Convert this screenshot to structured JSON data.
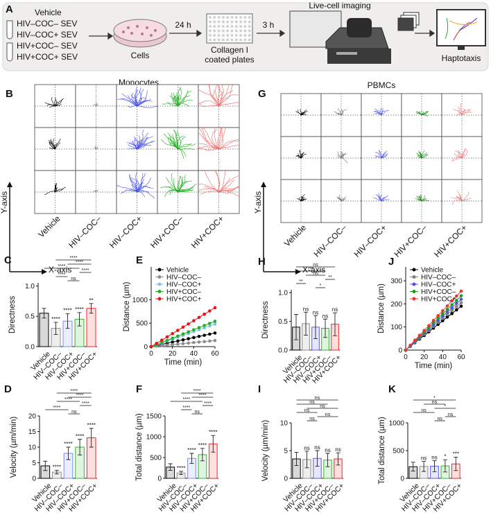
{
  "figure_a": {
    "label": "A",
    "groups": [
      "Vehicle",
      "HIV–COC– SEV",
      "HIV–COC+ SEV",
      "HIV+COC– SEV",
      "HIV+COC+ SEV"
    ],
    "cells": "Cells",
    "step1": "24 h",
    "plate": [
      "Collagen I",
      "coated plates"
    ],
    "step2": "3 h",
    "imaging": "Live-cell imaging",
    "result": "Haptotaxis"
  },
  "trajectories": [
    {
      "panel": "B",
      "title": "Monocytes",
      "conditions": [
        "Vehicle",
        "HIV–COC–",
        "HIV–COC+",
        "HIV+COC–",
        "HIV+COC+"
      ],
      "y_axis": "Y-axis",
      "x_axis": "X-axis",
      "colors": [
        "#000000",
        "#999999",
        "#4b55e6",
        "#1fb01f",
        "#f26b6b"
      ]
    },
    {
      "panel": "G",
      "title": "PBMCs",
      "conditions": [
        "Vehicle",
        "HIV–COC–",
        "HIV–COC+",
        "HIV+COC–",
        "HIV+COC+"
      ],
      "y_axis": "Y-axis",
      "x_axis": "X-axis",
      "colors": [
        "#000000",
        "#777777",
        "#4b55e6",
        "#1a8f1a",
        "#f07a7a"
      ]
    }
  ],
  "chart_data": [
    {
      "panel": "C",
      "type": "bar",
      "ylabel": "Directness",
      "categories": [
        "Vehicle",
        "HIV–COC–",
        "HIV–COC+",
        "HIV+COC–",
        "HIV+COC+"
      ],
      "values": [
        0.55,
        0.3,
        0.42,
        0.45,
        0.63
      ],
      "errors": [
        0.08,
        0.1,
        0.12,
        0.11,
        0.08
      ],
      "colors": [
        "#000000",
        "#8c8c8c",
        "#7b8cf0",
        "#2db82d",
        "#ff2020"
      ],
      "ylim": [
        0,
        1.05
      ],
      "yticks": [
        {
          "value": 0,
          "label": "0.0"
        },
        {
          "value": 0.5,
          "label": "0.5"
        },
        {
          "value": 1,
          "label": "1.0"
        }
      ],
      "marks": [
        null,
        "****",
        "****",
        "****",
        "**"
      ],
      "comparisons": [
        {
          "groups": [
            1,
            4
          ],
          "label": "****"
        },
        {
          "groups": [
            2,
            4
          ],
          "label": "****"
        },
        {
          "groups": [
            0,
            3
          ],
          "label": "****"
        },
        {
          "groups": [
            3,
            4
          ],
          "label": "****"
        },
        {
          "groups": [
            1,
            2
          ],
          "label": "****"
        },
        {
          "groups": [
            2,
            3
          ],
          "label": "ns"
        }
      ]
    },
    {
      "panel": "D",
      "type": "bar",
      "ylabel": "Velocity (µm/min)",
      "categories": [
        "Vehicle",
        "HIV–COC–",
        "HIV–COC+",
        "HIV+COC–",
        "HIV+COC+"
      ],
      "values": [
        4,
        2,
        8,
        10,
        13
      ],
      "errors": [
        1.5,
        0.6,
        2,
        2.5,
        3
      ],
      "colors": [
        "#000000",
        "#8c8c8c",
        "#7b8cf0",
        "#2db82d",
        "#ff2020"
      ],
      "ylim": [
        0,
        20
      ],
      "yticks": [
        0,
        5,
        10,
        15,
        20
      ],
      "marks": [
        null,
        "****",
        "****",
        "****",
        "****"
      ],
      "comparisons": [
        {
          "groups": [
            1,
            4
          ],
          "label": "****"
        },
        {
          "groups": [
            2,
            4
          ],
          "label": "****"
        },
        {
          "groups": [
            1,
            3
          ],
          "label": "****"
        },
        {
          "groups": [
            3,
            4
          ],
          "label": "****"
        },
        {
          "groups": [
            0,
            2
          ],
          "label": "****"
        },
        {
          "groups": [
            2,
            3
          ],
          "label": "ns"
        }
      ]
    },
    {
      "panel": "E",
      "type": "line",
      "ylabel": "Distance (µm)",
      "xlabel": "Time (min)",
      "x": [
        0,
        5,
        10,
        15,
        20,
        25,
        30,
        35,
        40,
        45,
        50,
        55,
        60
      ],
      "xlim": [
        0,
        60
      ],
      "xticks": [
        0,
        20,
        40,
        60
      ],
      "ylim": [
        0,
        1700
      ],
      "yticks": [
        0,
        500,
        1000
      ],
      "series": [
        {
          "name": "Vehicle",
          "color": "#000000",
          "values": [
            0,
            24,
            48,
            73,
            97,
            121,
            145,
            169,
            193,
            218,
            242,
            266,
            290
          ]
        },
        {
          "name": "HIV–COC–",
          "color": "#8c8c8c",
          "values": [
            0,
            11,
            22,
            33,
            43,
            54,
            65,
            76,
            87,
            98,
            108,
            119,
            130
          ]
        },
        {
          "name": "HIV–COC+",
          "color": "#87bff5",
          "values": [
            0,
            40,
            80,
            120,
            160,
            200,
            240,
            280,
            320,
            360,
            400,
            440,
            480
          ]
        },
        {
          "name": "HIV+COC–",
          "color": "#22b022",
          "values": [
            0,
            45,
            90,
            135,
            180,
            225,
            270,
            315,
            360,
            405,
            450,
            495,
            540
          ]
        },
        {
          "name": "HIV+COC+",
          "color": "#ee1111",
          "values": [
            0,
            69,
            138,
            208,
            277,
            346,
            415,
            484,
            553,
            623,
            692,
            761,
            830
          ]
        }
      ]
    },
    {
      "panel": "F",
      "type": "bar",
      "ylabel": "Total distance (µm)",
      "categories": [
        "Vehicle",
        "HIV–COC–",
        "HIV–COC+",
        "HIV+COC–",
        "HIV+COC+"
      ],
      "values": [
        270,
        130,
        480,
        570,
        830
      ],
      "errors": [
        80,
        40,
        120,
        150,
        200
      ],
      "colors": [
        "#000000",
        "#8c8c8c",
        "#7b8cf0",
        "#2db82d",
        "#ff2020"
      ],
      "ylim": [
        0,
        1500
      ],
      "yticks": [
        0,
        500,
        1000,
        1500
      ],
      "marks": [
        null,
        "****",
        "****",
        "****",
        "****"
      ],
      "comparisons": [
        {
          "groups": [
            1,
            4
          ],
          "label": "****"
        },
        {
          "groups": [
            2,
            4
          ],
          "label": "****"
        },
        {
          "groups": [
            0,
            3
          ],
          "label": "****"
        },
        {
          "groups": [
            3,
            4
          ],
          "label": "****"
        },
        {
          "groups": [
            1,
            2
          ],
          "label": "****"
        },
        {
          "groups": [
            2,
            3
          ],
          "label": "ns"
        }
      ]
    },
    {
      "panel": "H",
      "type": "bar",
      "ylabel": "Directness",
      "categories": [
        "Vehicle",
        "HIV–COC–",
        "HIV–COC+",
        "HIV+COC–",
        "HIV+COC+"
      ],
      "values": [
        0.4,
        0.46,
        0.4,
        0.38,
        0.45
      ],
      "errors": [
        0.22,
        0.2,
        0.2,
        0.16,
        0.2
      ],
      "colors": [
        "#000000",
        "#8c8c8c",
        "#5a5ae8",
        "#2db82d",
        "#ff2020"
      ],
      "ylim": [
        0,
        1.05
      ],
      "yticks": [
        {
          "value": 0,
          "label": "0.0"
        },
        {
          "value": 0.5,
          "label": "0.5"
        },
        {
          "value": 1,
          "label": "1.0"
        }
      ],
      "marks": [
        null,
        "ns",
        "ns",
        "ns",
        "ns"
      ],
      "comparisons": [
        {
          "groups": [
            0,
            4
          ],
          "label": "ns"
        },
        {
          "groups": [
            0,
            3
          ],
          "label": "***"
        },
        {
          "groups": [
            1,
            3
          ],
          "label": "ns"
        },
        {
          "groups": [
            3,
            4
          ],
          "label": "**"
        },
        {
          "groups": [
            0,
            1
          ],
          "label": "**"
        },
        {
          "groups": [
            2,
            3
          ],
          "label": "*"
        }
      ]
    },
    {
      "panel": "I",
      "type": "bar",
      "ylabel": "Velocity (µm/min)",
      "categories": [
        "Vehicle",
        "HIV–COC–",
        "HIV–COC+",
        "HIV+COC–",
        "HIV+COC+"
      ],
      "values": [
        3.5,
        3.4,
        3.6,
        3.3,
        3.5
      ],
      "errors": [
        1.2,
        1.5,
        1.4,
        1.2,
        1.1
      ],
      "colors": [
        "#000000",
        "#8c8c8c",
        "#5a5ae8",
        "#2db82d",
        "#ff2020"
      ],
      "ylim": [
        0,
        10
      ],
      "yticks": [
        0,
        5,
        10
      ],
      "marks": [
        null,
        "ns",
        "ns",
        "ns",
        "ns"
      ],
      "comparisons": [
        {
          "groups": [
            0,
            4
          ],
          "label": "ns"
        },
        {
          "groups": [
            0,
            3
          ],
          "label": "ns"
        },
        {
          "groups": [
            1,
            4
          ],
          "label": "ns"
        },
        {
          "groups": [
            0,
            2
          ],
          "label": "ns"
        },
        {
          "groups": [
            2,
            4
          ],
          "label": "ns"
        },
        {
          "groups": [
            1,
            2
          ],
          "label": "ns"
        }
      ]
    },
    {
      "panel": "J",
      "type": "line",
      "ylabel": "Distance (µm)",
      "xlabel": "Time (min)",
      "x": [
        0,
        5,
        10,
        15,
        20,
        25,
        30,
        35,
        40,
        45,
        50,
        55,
        60
      ],
      "xlim": [
        0,
        60
      ],
      "xticks": [
        0,
        20,
        40,
        60
      ],
      "ylim": [
        0,
        360
      ],
      "yticks": [
        0,
        100,
        200,
        300
      ],
      "series": [
        {
          "name": "Vehicle",
          "color": "#000000",
          "values": [
            0,
            16,
            32,
            48,
            63,
            79,
            95,
            111,
            127,
            143,
            158,
            174,
            190
          ]
        },
        {
          "name": "HIV–COC–",
          "color": "#808080",
          "values": [
            0,
            17,
            34,
            51,
            68,
            85,
            103,
            120,
            137,
            154,
            171,
            188,
            205
          ]
        },
        {
          "name": "HIV–COC+",
          "color": "#5050e8",
          "values": [
            0,
            18,
            37,
            55,
            73,
            92,
            110,
            128,
            147,
            165,
            183,
            202,
            220
          ]
        },
        {
          "name": "HIV+COC–",
          "color": "#1a9e1a",
          "values": [
            0,
            20,
            39,
            59,
            78,
            98,
            118,
            137,
            157,
            176,
            196,
            215,
            235
          ]
        },
        {
          "name": "HIV+COC+",
          "color": "#ee3333",
          "values": [
            0,
            21,
            43,
            64,
            85,
            106,
            128,
            149,
            170,
            191,
            213,
            234,
            255
          ]
        }
      ]
    },
    {
      "panel": "K",
      "type": "bar",
      "ylabel": "Total distance (µm)",
      "categories": [
        "Vehicle",
        "HIV–COC–",
        "HIV–COC+",
        "HIV+COC–",
        "HIV+COC+"
      ],
      "values": [
        210,
        215,
        220,
        225,
        260
      ],
      "errors": [
        80,
        90,
        100,
        110,
        120
      ],
      "colors": [
        "#000000",
        "#8c8c8c",
        "#5a5ae8",
        "#2db82d",
        "#ff2020"
      ],
      "ylim": [
        0,
        1000
      ],
      "yticks": [
        0,
        500,
        1000
      ],
      "marks": [
        null,
        "ns",
        "ns",
        "*",
        "***"
      ],
      "comparisons": [
        {
          "groups": [
            0,
            4
          ],
          "label": "*"
        },
        {
          "groups": [
            1,
            3
          ],
          "label": "ns"
        },
        {
          "groups": [
            2,
            4
          ],
          "label": "*"
        },
        {
          "groups": [
            0,
            2
          ],
          "label": "ns"
        },
        {
          "groups": [
            3,
            4
          ],
          "label": "ns"
        },
        {
          "groups": [
            2,
            3
          ],
          "label": "ns"
        }
      ]
    }
  ]
}
